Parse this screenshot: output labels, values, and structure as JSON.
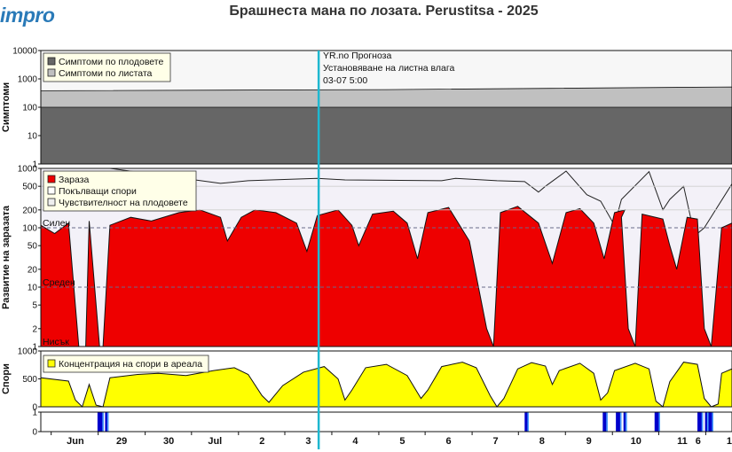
{
  "header": {
    "logo": "impro",
    "title": "Брашнеста мана по лозата.  Perustitsa - 2025"
  },
  "colors": {
    "fruit_symptoms": "#666666",
    "leaf_symptoms": "#c0c0c0",
    "infection": "#ee0000",
    "sporulation_bg": "#f3f1f8",
    "spore_conc": "#ffff00",
    "forecast_line": "#1fb8d0",
    "wet_bar": "#0000cc",
    "wet_bar_light": "#4aa3ff"
  },
  "forecast": {
    "line1": "YR.no Прогноза",
    "line2": "Установяване на листна влага",
    "line3": "03-07 5:00"
  },
  "x_ticks": [
    "Jun",
    "29",
    "30",
    "Jul",
    "2",
    "3",
    "4",
    "5",
    "6",
    "7",
    "8",
    "9",
    "10",
    "11",
    "6",
    "1"
  ],
  "chart_data": [
    {
      "type": "area",
      "name": "symptoms",
      "ylabel": "Симптоми",
      "yscale": "log",
      "ylim": [
        1,
        10000
      ],
      "yticks": [
        "10000",
        "1000",
        "100",
        "10",
        "1"
      ],
      "legend": [
        "Симптоми по плодовете",
        "Симптоми по листата"
      ],
      "legend_position": "top-left",
      "series": [
        {
          "name": "Симптоми по плодовете",
          "values": [
            {
              "x": 0,
              "y": 100
            },
            {
              "x": 1,
              "y": 100
            }
          ]
        },
        {
          "name": "Симптоми по листата",
          "values": [
            {
              "x": 0,
              "y": 380
            },
            {
              "x": 0.5,
              "y": 420
            },
            {
              "x": 1,
              "y": 520
            }
          ]
        }
      ]
    },
    {
      "type": "area",
      "name": "infection",
      "ylabel": "Развитие на заразата",
      "yscale": "log",
      "ylim": [
        1,
        1000
      ],
      "yticks": [
        "1000",
        "500",
        "200",
        "100",
        "50",
        "20",
        "10",
        "5",
        "2",
        "1"
      ],
      "thresholds": [
        {
          "label": "Силен",
          "value": 100
        },
        {
          "label": "Среден",
          "value": 10
        },
        {
          "label": "Нисък",
          "value": 1
        }
      ],
      "legend": [
        "Зараза",
        "Покълващи спори",
        "Чувствителност на плодовете"
      ],
      "legend_position": "top-left",
      "series": [
        {
          "name": "Зараза",
          "values": [
            [
              0.0,
              110
            ],
            [
              0.02,
              80
            ],
            [
              0.04,
              120
            ],
            [
              0.055,
              1
            ],
            [
              0.065,
              1
            ],
            [
              0.07,
              130
            ],
            [
              0.085,
              1
            ],
            [
              0.09,
              1
            ],
            [
              0.1,
              110
            ],
            [
              0.13,
              150
            ],
            [
              0.16,
              130
            ],
            [
              0.2,
              180
            ],
            [
              0.23,
              200
            ],
            [
              0.26,
              150
            ],
            [
              0.27,
              60
            ],
            [
              0.29,
              150
            ],
            [
              0.31,
              200
            ],
            [
              0.34,
              180
            ],
            [
              0.37,
              120
            ],
            [
              0.385,
              40
            ],
            [
              0.4,
              160
            ],
            [
              0.43,
              200
            ],
            [
              0.45,
              110
            ],
            [
              0.46,
              50
            ],
            [
              0.48,
              170
            ],
            [
              0.51,
              190
            ],
            [
              0.53,
              120
            ],
            [
              0.545,
              30
            ],
            [
              0.56,
              180
            ],
            [
              0.59,
              220
            ],
            [
              0.62,
              60
            ],
            [
              0.645,
              2
            ],
            [
              0.655,
              1
            ],
            [
              0.665,
              180
            ],
            [
              0.69,
              230
            ],
            [
              0.72,
              120
            ],
            [
              0.74,
              25
            ],
            [
              0.76,
              180
            ],
            [
              0.78,
              210
            ],
            [
              0.8,
              120
            ],
            [
              0.815,
              30
            ],
            [
              0.83,
              180
            ],
            [
              0.845,
              200
            ],
            [
              0.84,
              150
            ],
            [
              0.85,
              2
            ],
            [
              0.86,
              1
            ],
            [
              0.87,
              170
            ],
            [
              0.9,
              140
            ],
            [
              0.91,
              50
            ],
            [
              0.92,
              20
            ],
            [
              0.935,
              150
            ],
            [
              0.95,
              140
            ],
            [
              0.96,
              2
            ],
            [
              0.97,
              1
            ],
            [
              0.985,
              100
            ],
            [
              1.0,
              120
            ]
          ]
        },
        {
          "name": "Покълващи спори",
          "values": [
            [
              0.0,
              1000
            ],
            [
              0.1,
              1000
            ],
            [
              0.26,
              560
            ],
            [
              0.3,
              620
            ],
            [
              0.4,
              680
            ],
            [
              0.44,
              640
            ],
            [
              0.58,
              620
            ],
            [
              0.6,
              680
            ],
            [
              0.66,
              620
            ],
            [
              0.7,
              600
            ],
            [
              0.72,
              400
            ],
            [
              0.73,
              500
            ],
            [
              0.76,
              900
            ],
            [
              0.79,
              360
            ],
            [
              0.81,
              280
            ],
            [
              0.83,
              110
            ],
            [
              0.84,
              300
            ],
            [
              0.88,
              880
            ],
            [
              0.9,
              200
            ],
            [
              0.91,
              300
            ],
            [
              0.93,
              500
            ],
            [
              0.94,
              150
            ],
            [
              0.95,
              80
            ],
            [
              0.96,
              100
            ],
            [
              1.0,
              550
            ]
          ]
        },
        {
          "name": "Чувствителност на плодовете",
          "values": [
            [
              0,
              1000
            ],
            [
              1,
              1000
            ]
          ]
        }
      ]
    },
    {
      "type": "area",
      "name": "spores",
      "ylabel": "Спори",
      "ylim": [
        0,
        1000
      ],
      "yticks": [
        "1000",
        "500",
        "0"
      ],
      "legend": [
        "Концентрация на спори в ареала"
      ],
      "legend_position": "top-left",
      "series": [
        {
          "name": "Концентрация на спори в ареала",
          "values": [
            [
              0.0,
              520
            ],
            [
              0.04,
              460
            ],
            [
              0.05,
              120
            ],
            [
              0.06,
              0
            ],
            [
              0.07,
              400
            ],
            [
              0.08,
              30
            ],
            [
              0.09,
              0
            ],
            [
              0.1,
              520
            ],
            [
              0.14,
              580
            ],
            [
              0.17,
              600
            ],
            [
              0.21,
              560
            ],
            [
              0.25,
              650
            ],
            [
              0.28,
              700
            ],
            [
              0.3,
              580
            ],
            [
              0.32,
              200
            ],
            [
              0.33,
              80
            ],
            [
              0.35,
              380
            ],
            [
              0.38,
              620
            ],
            [
              0.41,
              720
            ],
            [
              0.43,
              500
            ],
            [
              0.44,
              120
            ],
            [
              0.45,
              300
            ],
            [
              0.47,
              700
            ],
            [
              0.5,
              760
            ],
            [
              0.53,
              560
            ],
            [
              0.55,
              150
            ],
            [
              0.56,
              300
            ],
            [
              0.58,
              720
            ],
            [
              0.61,
              800
            ],
            [
              0.63,
              700
            ],
            [
              0.65,
              200
            ],
            [
              0.66,
              0
            ],
            [
              0.67,
              150
            ],
            [
              0.69,
              680
            ],
            [
              0.71,
              790
            ],
            [
              0.73,
              730
            ],
            [
              0.74,
              400
            ],
            [
              0.75,
              650
            ],
            [
              0.78,
              780
            ],
            [
              0.8,
              600
            ],
            [
              0.81,
              120
            ],
            [
              0.82,
              250
            ],
            [
              0.83,
              650
            ],
            [
              0.86,
              780
            ],
            [
              0.88,
              680
            ],
            [
              0.89,
              100
            ],
            [
              0.9,
              0
            ],
            [
              0.91,
              450
            ],
            [
              0.93,
              800
            ],
            [
              0.95,
              760
            ],
            [
              0.96,
              150
            ],
            [
              0.97,
              0
            ],
            [
              0.98,
              50
            ],
            [
              0.985,
              600
            ],
            [
              1.0,
              680
            ]
          ]
        }
      ]
    },
    {
      "type": "bar",
      "name": "leaf_wetness",
      "ylim": [
        0,
        1
      ],
      "yticks": [
        "1",
        "0"
      ],
      "series": [
        {
          "name": "wetness",
          "values": [
            [
              0.082,
              0.091
            ],
            [
              0.093,
              0.098
            ],
            [
              0.7,
              0.706
            ],
            [
              0.813,
              0.82
            ],
            [
              0.832,
              0.84
            ],
            [
              0.843,
              0.848
            ],
            [
              0.888,
              0.896
            ],
            [
              0.95,
              0.958
            ],
            [
              0.961,
              0.966
            ],
            [
              0.966,
              0.973
            ]
          ]
        }
      ]
    }
  ]
}
